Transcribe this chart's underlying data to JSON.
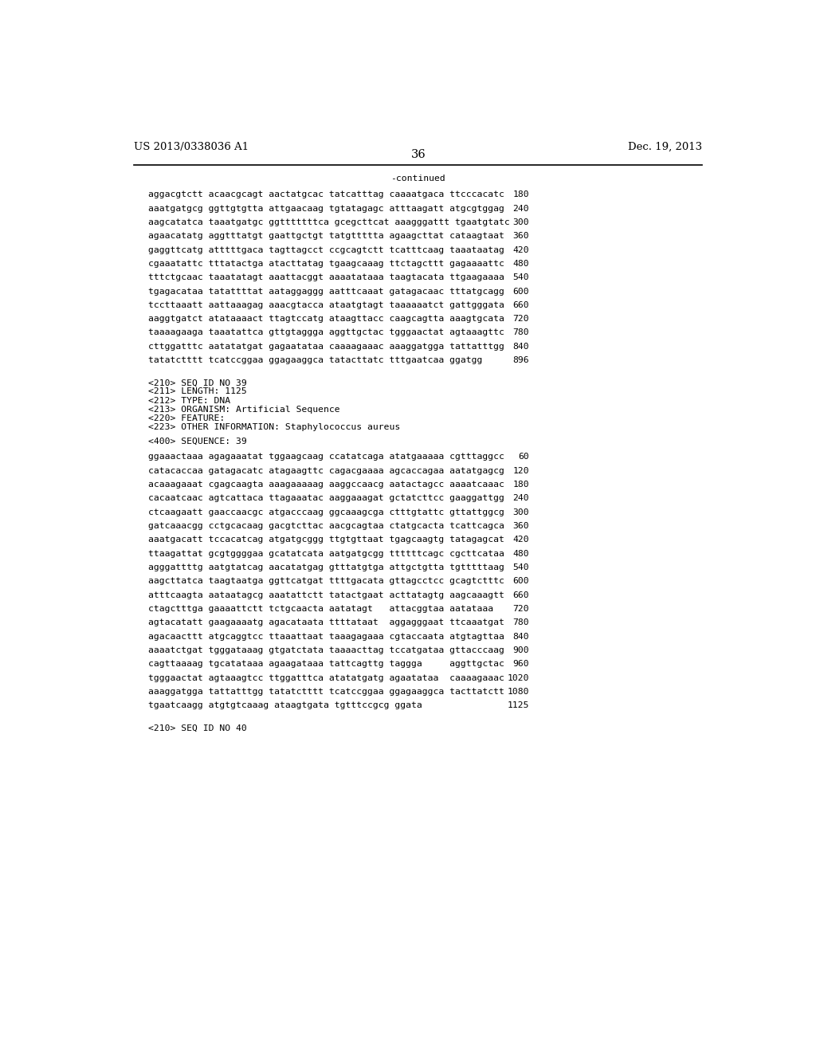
{
  "header_left": "US 2013/0338036 A1",
  "header_right": "Dec. 19, 2013",
  "page_number": "36",
  "continued_label": "-continued",
  "background_color": "#ffffff",
  "text_color": "#000000",
  "font_size_header": 9.5,
  "font_size_body": 8.2,
  "font_size_page": 10.5,
  "sequence_block_1": [
    [
      "aggacgtctt acaacgcagt aactatgcac tatcatttag caaaatgaca ttcccacatc",
      "180"
    ],
    [
      "aaatgatgcg ggttgtgtta attgaacaag tgtatagagc atttaagatt atgcgtggag",
      "240"
    ],
    [
      "aagcatatca taaatgatgc ggtttttttca gcegcttcat aaagggattt tgaatgtatc",
      "300"
    ],
    [
      "agaacatatg aggtttatgt gaattgctgt tatgttttta agaagcttat cataagtaat",
      "360"
    ],
    [
      "gaggttcatg atttttgaca tagttagcct ccgcagtctt tcatttcaag taaataatag",
      "420"
    ],
    [
      "cgaaatattc tttatactga atacttatag tgaagcaaag ttctagcttt gagaaaattc",
      "480"
    ],
    [
      "tttctgcaac taaatatagt aaattacggt aaaatataaa taagtacata ttgaagaaaa",
      "540"
    ],
    [
      "tgagacataa tatattttat aataggaggg aatttcaaat gatagacaac tttatgcagg",
      "600"
    ],
    [
      "tccttaaatt aattaaagag aaacgtacca ataatgtagt taaaaaatct gattgggata",
      "660"
    ],
    [
      "aaggtgatct atataaaact ttagtccatg ataagttacc caagcagtta aaagtgcata",
      "720"
    ],
    [
      "taaaagaaga taaatattca gttgtaggga aggttgctac tgggaactat agtaaagttc",
      "780"
    ],
    [
      "cttggatttc aatatatgat gagaatataa caaaagaaac aaaggatgga tattatttgg",
      "840"
    ],
    [
      "tatatctttt tcatccggaa ggagaaggca tatacttatc tttgaatcaa ggatgg",
      "896"
    ]
  ],
  "metadata_block": [
    "<210> SEQ ID NO 39",
    "<211> LENGTH: 1125",
    "<212> TYPE: DNA",
    "<213> ORGANISM: Artificial Sequence",
    "<220> FEATURE:",
    "<223> OTHER INFORMATION: Staphylococcus aureus"
  ],
  "sequence_label": "<400> SEQUENCE: 39",
  "sequence_block_2": [
    [
      "ggaaactaaa agagaaatat tggaagcaag ccatatcaga atatgaaaaa cgtttaggcc",
      "60"
    ],
    [
      "catacaccaa gatagacatc atagaagttc cagacgaaaa agcaccagaa aatatgagcg",
      "120"
    ],
    [
      "acaaagaaat cgagcaagta aaagaaaaag aaggccaacg aatactagcc aaaatcaaac",
      "180"
    ],
    [
      "cacaatcaac agtcattaca ttagaaatac aaggaaagat gctatcttcc gaaggattgg",
      "240"
    ],
    [
      "ctcaagaatt gaaccaacgc atgacccaag ggcaaagcga ctttgtattc gttattggcg",
      "300"
    ],
    [
      "gatcaaacgg cctgcacaag gacgtcttac aacgcagtaa ctatgcacta tcattcagca",
      "360"
    ],
    [
      "aaatgacatt tccacatcag atgatgcggg ttgtgttaat tgagcaagtg tatagagcat",
      "420"
    ],
    [
      "ttaagattat gcgtggggaa gcatatcata aatgatgcgg ttttttcagc cgcttcataa",
      "480"
    ],
    [
      "agggattttg aatgtatcag aacatatgag gtttatgtga attgctgtta tgtttttaag",
      "540"
    ],
    [
      "aagcttatca taagtaatga ggttcatgat ttttgacata gttagcctcc gcagtctttc",
      "600"
    ],
    [
      "atttcaagta aataatagcg aaatattctt tatactgaat acttatagtg aagcaaagtt",
      "660"
    ],
    [
      "ctagctttga gaaaattctt tctgcaacta aatatagt   attacggtaa aatataaa",
      "720"
    ],
    [
      "agtacatatt gaagaaaatg agacataata ttttataat  aggagggaat ttcaaatgat",
      "780"
    ],
    [
      "agacaacttt atgcaggtcc ttaaattaat taaagagaaa cgtaccaata atgtagttaa",
      "840"
    ],
    [
      "aaaatctgat tgggataaag gtgatctata taaaacttag tccatgataa gttacccaag",
      "900"
    ],
    [
      "cagttaaaag tgcatataaa agaagataaa tattcagttg taggga     aggttgctac",
      "960"
    ],
    [
      "tgggaactat agtaaagtcc ttggatttca atatatgatg agaatataa  caaaagaaac",
      "1020"
    ],
    [
      "aaaggatgga tattatttgg tatatctttt tcatccggaa ggagaaggca tacttatctt",
      "1080"
    ],
    [
      "tgaatcaagg atgtgtcaaag ataagtgata tgtttccgcg ggata",
      "1125"
    ]
  ],
  "footer_label": "<210> SEQ ID NO 40"
}
